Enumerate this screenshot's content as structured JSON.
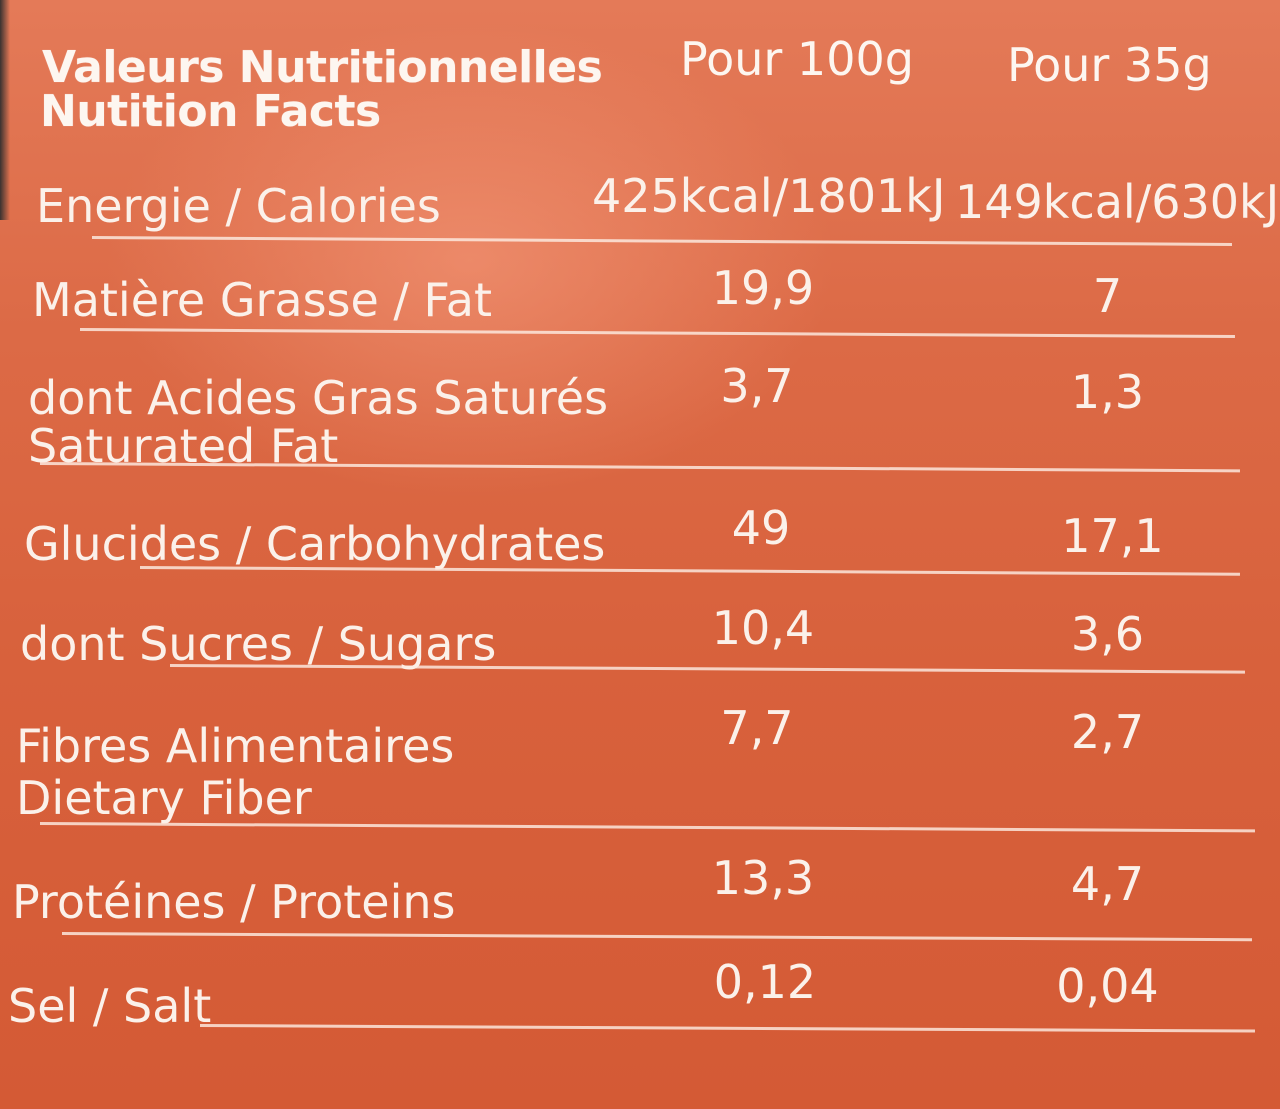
{
  "header": {
    "title_fr": "Valeurs Nutritionnelles",
    "title_en": "Nutition Facts",
    "col_100g": "Pour 100g",
    "col_35g": "Pour 35g"
  },
  "rows": [
    {
      "label_1": "Energie / Calories",
      "label_2": "",
      "per_100g": "425kcal/1801kJ",
      "per_35g": "149kcal/630kJ"
    },
    {
      "label_1": "Matière Grasse / Fat",
      "label_2": "",
      "per_100g": "19,9",
      "per_35g": "7"
    },
    {
      "label_1": "dont Acides Gras Saturés",
      "label_2": "Saturated Fat",
      "per_100g": "3,7",
      "per_35g": "1,3"
    },
    {
      "label_1": "Glucides / Carbohydrates",
      "label_2": "",
      "per_100g": "49",
      "per_35g": "17,1"
    },
    {
      "label_1": "dont Sucres / Sugars",
      "label_2": "",
      "per_100g": "10,4",
      "per_35g": "3,6"
    },
    {
      "label_1": "Fibres Alimentaires",
      "label_2": "Dietary Fiber",
      "per_100g": "7,7",
      "per_35g": "2,7"
    },
    {
      "label_1": "Protéines / Proteins",
      "label_2": "",
      "per_100g": "13,3",
      "per_35g": "4,7"
    },
    {
      "label_1": "Sel / Salt",
      "label_2": "",
      "per_100g": "0,12",
      "per_35g": "0,04"
    }
  ],
  "colors": {
    "panel": "#d8613c",
    "text": "#fbf1ea"
  }
}
